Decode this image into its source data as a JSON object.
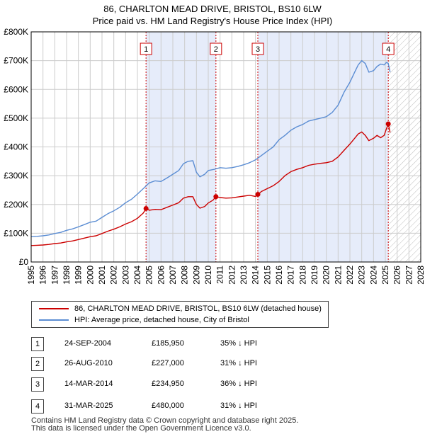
{
  "title": {
    "line1": "86, CHARLTON MEAD DRIVE, BRISTOL, BS10 6LW",
    "line2": "Price paid vs. HM Land Registry's House Price Index (HPI)"
  },
  "colors": {
    "property": "#cc0000",
    "hpi": "#5b8dd3",
    "shade": "#e6ecfa",
    "marker_line": "#cc0000",
    "grid": "#cccccc"
  },
  "chart_data": {
    "type": "line",
    "title": "Price paid vs. HM Land Registry's House Price Index (HPI)",
    "xlabel": "",
    "ylabel": "",
    "xlim": [
      1995,
      2028
    ],
    "ylim": [
      0,
      800000
    ],
    "y_ticks": [
      0,
      100000,
      200000,
      300000,
      400000,
      500000,
      600000,
      700000,
      800000
    ],
    "y_tick_labels": [
      "£0",
      "£100K",
      "£200K",
      "£300K",
      "£400K",
      "£500K",
      "£600K",
      "£700K",
      "£800K"
    ],
    "x_ticks": [
      1995,
      1996,
      1997,
      1998,
      1999,
      2000,
      2001,
      2002,
      2003,
      2004,
      2005,
      2006,
      2007,
      2008,
      2009,
      2010,
      2011,
      2012,
      2013,
      2014,
      2015,
      2016,
      2017,
      2018,
      2019,
      2020,
      2021,
      2022,
      2023,
      2024,
      2025,
      2026,
      2027,
      2028
    ],
    "x_tick_labels": [
      "1995",
      "1996",
      "1997",
      "1998",
      "1999",
      "2000",
      "2001",
      "2002",
      "2003",
      "2004",
      "2005",
      "2006",
      "2007",
      "2008",
      "2009",
      "2010",
      "2011",
      "2012",
      "2013",
      "2014",
      "2015",
      "2016",
      "2017",
      "2018",
      "2019",
      "2020",
      "2021",
      "2022",
      "2023",
      "2024",
      "2025",
      "2026",
      "2027",
      "2028"
    ],
    "grid": true,
    "shaded_ranges": [
      [
        2004.73,
        2010.65
      ],
      [
        2014.2,
        2025.25
      ]
    ],
    "future_hatch_from": 2025.25,
    "series": [
      {
        "name": "HPI: Average price, detached house, City of Bristol",
        "key": "hpi",
        "x": [
          1995.0,
          1995.5,
          1996.0,
          1996.5,
          1997.0,
          1997.5,
          1998.0,
          1998.5,
          1999.0,
          1999.5,
          2000.0,
          2000.5,
          2001.0,
          2001.5,
          2002.0,
          2002.5,
          2003.0,
          2003.5,
          2004.0,
          2004.5,
          2005.0,
          2005.5,
          2006.0,
          2006.5,
          2007.0,
          2007.5,
          2007.9,
          2008.3,
          2008.7,
          2009.0,
          2009.3,
          2009.7,
          2010.0,
          2010.5,
          2011.0,
          2011.5,
          2012.0,
          2012.5,
          2013.0,
          2013.5,
          2014.0,
          2014.5,
          2015.0,
          2015.5,
          2016.0,
          2016.5,
          2017.0,
          2017.5,
          2018.0,
          2018.5,
          2019.0,
          2019.5,
          2020.0,
          2020.5,
          2021.0,
          2021.5,
          2022.0,
          2022.4,
          2022.7,
          2023.0,
          2023.3,
          2023.6,
          2024.0,
          2024.3,
          2024.6,
          2024.9,
          2025.1,
          2025.25,
          2025.4
        ],
        "values": [
          88000,
          89000,
          91000,
          94000,
          99000,
          103000,
          110000,
          115000,
          122000,
          130000,
          138000,
          142000,
          155000,
          168000,
          178000,
          190000,
          206000,
          218000,
          236000,
          255000,
          275000,
          282000,
          280000,
          292000,
          305000,
          318000,
          342000,
          350000,
          352000,
          312000,
          296000,
          305000,
          318000,
          322000,
          328000,
          326000,
          328000,
          332000,
          338000,
          345000,
          355000,
          370000,
          385000,
          400000,
          425000,
          440000,
          458000,
          470000,
          478000,
          490000,
          495000,
          500000,
          505000,
          520000,
          545000,
          590000,
          625000,
          660000,
          685000,
          700000,
          690000,
          660000,
          665000,
          680000,
          688000,
          685000,
          694000,
          690000,
          660000
        ]
      },
      {
        "name": "86, CHARLTON MEAD DRIVE, BRISTOL, BS10 6LW (detached house)",
        "key": "property",
        "x": [
          1995.0,
          1995.5,
          1996.0,
          1996.5,
          1997.0,
          1997.5,
          1998.0,
          1998.5,
          1999.0,
          1999.5,
          2000.0,
          2000.5,
          2001.0,
          2001.5,
          2002.0,
          2002.5,
          2003.0,
          2003.5,
          2004.0,
          2004.5,
          2004.73,
          2005.0,
          2005.5,
          2006.0,
          2006.5,
          2007.0,
          2007.5,
          2007.9,
          2008.3,
          2008.7,
          2009.0,
          2009.3,
          2009.7,
          2010.0,
          2010.4,
          2010.65,
          2011.0,
          2011.5,
          2012.0,
          2012.5,
          2013.0,
          2013.5,
          2014.0,
          2014.2,
          2014.5,
          2015.0,
          2015.5,
          2016.0,
          2016.5,
          2017.0,
          2017.5,
          2018.0,
          2018.5,
          2019.0,
          2019.5,
          2020.0,
          2020.5,
          2021.0,
          2021.5,
          2022.0,
          2022.4,
          2022.7,
          2023.0,
          2023.3,
          2023.6,
          2024.0,
          2024.3,
          2024.6,
          2024.9,
          2025.1,
          2025.25,
          2025.4
        ],
        "values": [
          57000,
          58000,
          59000,
          61000,
          64000,
          66000,
          70000,
          73000,
          78000,
          83000,
          88000,
          91000,
          99000,
          107000,
          114000,
          122000,
          132000,
          140000,
          152000,
          170000,
          185950,
          180000,
          183000,
          182000,
          190000,
          198000,
          206000,
          222000,
          227000,
          227000,
          200000,
          187000,
          193000,
          205000,
          215000,
          227000,
          224000,
          222000,
          223000,
          226000,
          229000,
          232000,
          228000,
          234950,
          245000,
          255000,
          265000,
          280000,
          300000,
          314000,
          322000,
          328000,
          336000,
          340000,
          343000,
          345000,
          350000,
          365000,
          388000,
          410000,
          430000,
          445000,
          452000,
          440000,
          422000,
          430000,
          440000,
          432000,
          440000,
          464000,
          480000,
          450000
        ]
      }
    ],
    "sales": [
      {
        "label": "1",
        "x": 2004.73,
        "price": 185950
      },
      {
        "label": "2",
        "x": 2010.65,
        "price": 227000
      },
      {
        "label": "3",
        "x": 2014.2,
        "price": 234950
      },
      {
        "label": "4",
        "x": 2025.25,
        "price": 480000
      }
    ]
  },
  "legend": {
    "property_label": "86, CHARLTON MEAD DRIVE, BRISTOL, BS10 6LW (detached house)",
    "hpi_label": "HPI: Average price, detached house, City of Bristol"
  },
  "sales_table": [
    {
      "num": "1",
      "date": "24-SEP-2004",
      "price": "£185,950",
      "hpi": "35% ↓ HPI"
    },
    {
      "num": "2",
      "date": "26-AUG-2010",
      "price": "£227,000",
      "hpi": "31% ↓ HPI"
    },
    {
      "num": "3",
      "date": "14-MAR-2014",
      "price": "£234,950",
      "hpi": "36% ↓ HPI"
    },
    {
      "num": "4",
      "date": "31-MAR-2025",
      "price": "£480,000",
      "hpi": "31% ↓ HPI"
    }
  ],
  "footer": {
    "line1": "Contains HM Land Registry data © Crown copyright and database right 2025.",
    "line2": "This data is licensed under the Open Government Licence v3.0."
  }
}
